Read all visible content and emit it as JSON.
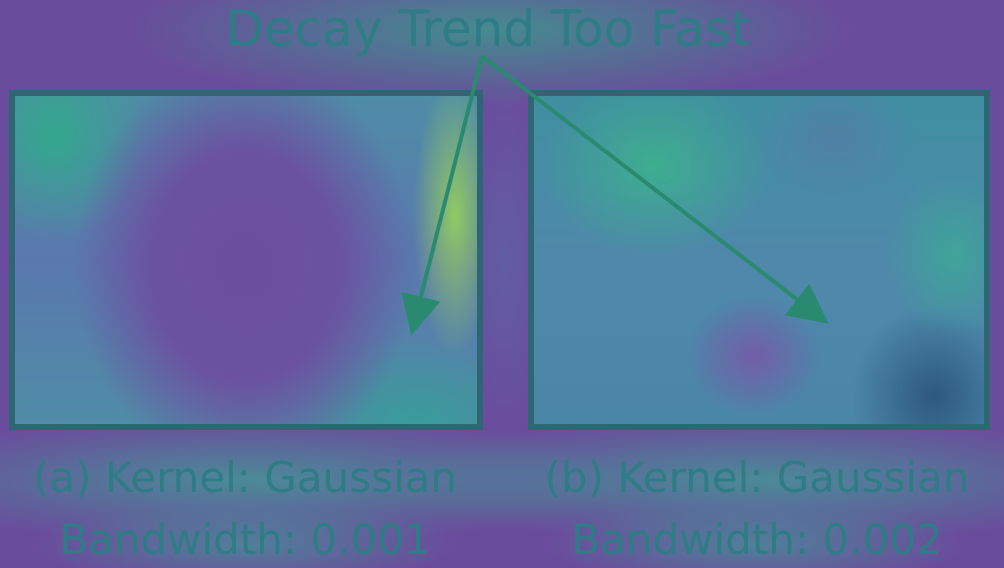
{
  "title": "Decay Trend Too Fast",
  "panels": [
    {
      "caption_line1": "(a) Kernel: Gaussian",
      "caption_line2": "Bandwidth: 0.001"
    },
    {
      "caption_line1": "(b) Kernel: Gaussian",
      "caption_line2": "Bandwidth: 0.002"
    }
  ],
  "colors": {
    "text": "#2e7c86",
    "arrow": "#2a8a70",
    "frame": "#2f6674",
    "background": "#6a4c9c"
  }
}
